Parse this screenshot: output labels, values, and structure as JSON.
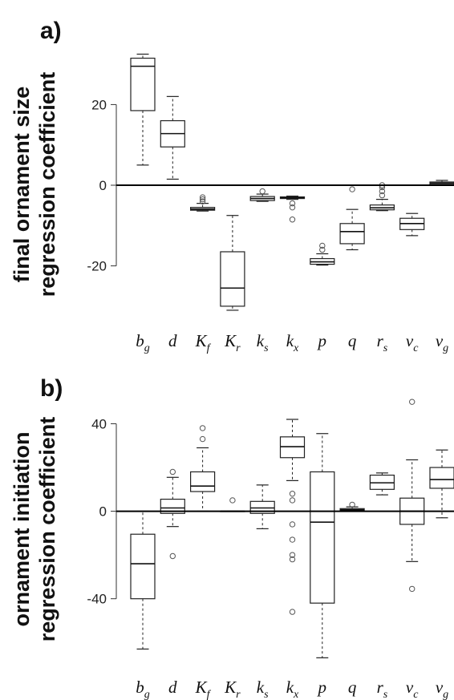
{
  "chart_data": [
    {
      "type": "box",
      "panel_label": "a)",
      "ylabel_line1": "final ornament size",
      "ylabel_line2": "regression coefficient",
      "ylim": [
        -34,
        34
      ],
      "yticks": [
        -20,
        0,
        20
      ],
      "zero_line": true,
      "categories": [
        {
          "base": "b",
          "sub": "g"
        },
        {
          "base": "d",
          "sub": ""
        },
        {
          "base": "K",
          "sub": "f"
        },
        {
          "base": "K",
          "sub": "r"
        },
        {
          "base": "k",
          "sub": "s"
        },
        {
          "base": "k",
          "sub": "x"
        },
        {
          "base": "p",
          "sub": ""
        },
        {
          "base": "q",
          "sub": ""
        },
        {
          "base": "r",
          "sub": "s"
        },
        {
          "base": "v",
          "sub": "c"
        },
        {
          "base": "v",
          "sub": "g"
        }
      ],
      "boxes": [
        {
          "lw": 5,
          "q1": 18.5,
          "med": 29.5,
          "q3": 31.5,
          "uw": 32.5,
          "outliers": []
        },
        {
          "lw": 1.5,
          "q1": 9.5,
          "med": 12.8,
          "q3": 16,
          "uw": 22,
          "outliers": []
        },
        {
          "lw": -6.4,
          "q1": -6.2,
          "med": -5.9,
          "q3": -5.5,
          "uw": -4.5,
          "outliers": [
            -3,
            -3.5,
            -4
          ]
        },
        {
          "lw": -31,
          "q1": -30,
          "med": -25.5,
          "q3": -16.5,
          "uw": -7.5,
          "outliers": []
        },
        {
          "lw": -4,
          "q1": -3.8,
          "med": -3.3,
          "q3": -2.8,
          "uw": -2.2,
          "outliers": [
            -1.5
          ]
        },
        {
          "lw": -3.5,
          "q1": -3.3,
          "med": -3.1,
          "q3": -2.9,
          "uw": -2.7,
          "outliers": [
            -4.5,
            -5.5,
            -8.5
          ]
        },
        {
          "lw": -19.8,
          "q1": -19.6,
          "med": -19,
          "q3": -18.2,
          "uw": -17,
          "outliers": [
            -15,
            -16
          ]
        },
        {
          "lw": -16,
          "q1": -14.5,
          "med": -11.5,
          "q3": -9.5,
          "uw": -6,
          "outliers": [
            -1
          ]
        },
        {
          "lw": -6.3,
          "q1": -6.1,
          "med": -5.6,
          "q3": -4.9,
          "uw": -3.5,
          "outliers": [
            -2.5,
            -1.5,
            -0.5,
            0
          ]
        },
        {
          "lw": -12.5,
          "q1": -11,
          "med": -9.5,
          "q3": -8.2,
          "uw": -7,
          "outliers": []
        },
        {
          "lw": 0,
          "q1": 0.2,
          "med": 0.5,
          "q3": 0.8,
          "uw": 1.2,
          "outliers": []
        }
      ]
    },
    {
      "type": "box",
      "panel_label": "b)",
      "ylabel_line1": "ornament initiation",
      "ylabel_line2": "regression coefficient",
      "ylim": [
        -72,
        53
      ],
      "yticks": [
        -40,
        0,
        40
      ],
      "zero_line": true,
      "categories": [
        {
          "base": "b",
          "sub": "g"
        },
        {
          "base": "d",
          "sub": ""
        },
        {
          "base": "K",
          "sub": "f"
        },
        {
          "base": "K",
          "sub": "r"
        },
        {
          "base": "k",
          "sub": "s"
        },
        {
          "base": "k",
          "sub": "x"
        },
        {
          "base": "p",
          "sub": ""
        },
        {
          "base": "q",
          "sub": ""
        },
        {
          "base": "r",
          "sub": "s"
        },
        {
          "base": "v",
          "sub": "c"
        },
        {
          "base": "v",
          "sub": "g"
        }
      ],
      "boxes": [
        {
          "lw": -63,
          "q1": -40,
          "med": -24,
          "q3": -10.5,
          "uw": 0,
          "outliers": []
        },
        {
          "lw": -7,
          "q1": -1,
          "med": 1.5,
          "q3": 5.5,
          "uw": 15.5,
          "outliers": [
            18,
            -20.5
          ]
        },
        {
          "lw": 0,
          "q1": 9,
          "med": 11.5,
          "q3": 18,
          "uw": 29,
          "outliers": [
            33,
            38
          ]
        },
        {
          "lw": 0,
          "q1": 0,
          "med": 0,
          "q3": 0,
          "uw": 0,
          "outliers": [
            5
          ]
        },
        {
          "lw": -8,
          "q1": -1,
          "med": 1.5,
          "q3": 4.5,
          "uw": 12,
          "outliers": []
        },
        {
          "lw": 14,
          "q1": 24.5,
          "med": 29.5,
          "q3": 34,
          "uw": 42,
          "outliers": [
            8,
            5,
            -6,
            -13,
            -20,
            -22,
            -46
          ]
        },
        {
          "lw": -67,
          "q1": -42,
          "med": -5,
          "q3": 18,
          "uw": 35.5,
          "outliers": []
        },
        {
          "lw": 0,
          "q1": 0.3,
          "med": 0.7,
          "q3": 1.2,
          "uw": 2,
          "outliers": [
            3
          ]
        },
        {
          "lw": 7.5,
          "q1": 10,
          "med": 13,
          "q3": 16.5,
          "uw": 17.5,
          "outliers": []
        },
        {
          "lw": -23,
          "q1": -6,
          "med": 0,
          "q3": 6,
          "uw": 23.5,
          "outliers": [
            50,
            -35.5
          ]
        },
        {
          "lw": -3,
          "q1": 10.5,
          "med": 14.5,
          "q3": 20,
          "uw": 28,
          "outliers": []
        }
      ]
    }
  ]
}
